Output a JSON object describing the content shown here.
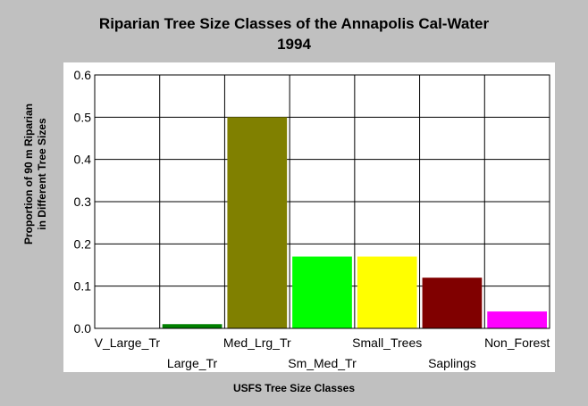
{
  "chart_data": {
    "type": "bar",
    "title_lines": [
      "Riparian Tree Size Classes of the Annapolis Cal-Water",
      "1994"
    ],
    "xlabel": "USFS Tree Size Classes",
    "ylabel_lines": [
      "Proportion of 90 m Riparian",
      "in Different Tree Sizes"
    ],
    "categories": [
      "V_Large_Tr",
      "Large_Tr",
      "Med_Lrg_Tr",
      "Sm_Med_Tr",
      "Small_Trees",
      "Saplings",
      "Non_Forest"
    ],
    "values": [
      0.0,
      0.01,
      0.5,
      0.17,
      0.17,
      0.12,
      0.04
    ],
    "colors": [
      "#000080",
      "#008000",
      "#808000",
      "#00ff00",
      "#ffff00",
      "#800000",
      "#ff00ff"
    ],
    "ylim": [
      0,
      0.6
    ],
    "yticks": [
      0.0,
      0.1,
      0.2,
      0.3,
      0.4,
      0.5,
      0.6
    ],
    "ytick_labels": [
      "0.0",
      "0.1",
      "0.2",
      "0.3",
      "0.4",
      "0.5",
      "0.6"
    ],
    "grid": true,
    "legend": "none"
  }
}
